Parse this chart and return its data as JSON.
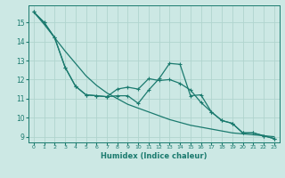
{
  "xlabel": "Humidex (Indice chaleur)",
  "bg_color": "#cce8e4",
  "grid_color": "#b0d4ce",
  "line_color": "#1a7a6e",
  "xlim": [
    -0.5,
    23.5
  ],
  "ylim": [
    8.7,
    15.9
  ],
  "xticks": [
    0,
    1,
    2,
    3,
    4,
    5,
    6,
    7,
    8,
    9,
    10,
    11,
    12,
    13,
    14,
    15,
    16,
    17,
    18,
    19,
    20,
    21,
    22,
    23
  ],
  "yticks": [
    9,
    10,
    11,
    12,
    13,
    14,
    15
  ],
  "line1_x": [
    0,
    1,
    2,
    3,
    4,
    5,
    6,
    7,
    8,
    9,
    10,
    11,
    12,
    13,
    14,
    15,
    16,
    17,
    18,
    19,
    20,
    21,
    22,
    23
  ],
  "line1_y": [
    15.55,
    14.9,
    14.2,
    13.5,
    12.85,
    12.2,
    11.7,
    11.3,
    11.0,
    10.7,
    10.5,
    10.3,
    10.1,
    9.9,
    9.75,
    9.6,
    9.5,
    9.4,
    9.3,
    9.2,
    9.15,
    9.1,
    9.05,
    9.0
  ],
  "line2_x": [
    0,
    1,
    2,
    3,
    4,
    5,
    6,
    7,
    8,
    9,
    10,
    11,
    12,
    13,
    14,
    15,
    16,
    17,
    18,
    19,
    20,
    21,
    22,
    23
  ],
  "line2_y": [
    15.55,
    15.0,
    14.2,
    12.65,
    11.65,
    11.2,
    11.15,
    11.1,
    11.15,
    11.15,
    10.75,
    11.45,
    12.05,
    12.85,
    12.8,
    11.15,
    11.2,
    10.3,
    9.85,
    9.7,
    9.2,
    9.2,
    9.05,
    8.9
  ],
  "line3_x": [
    0,
    1,
    2,
    3,
    4,
    5,
    6,
    7,
    8,
    9,
    10,
    11,
    12,
    13,
    14,
    15,
    16,
    17,
    18,
    19,
    20,
    21,
    22,
    23
  ],
  "line3_y": [
    15.55,
    15.0,
    14.2,
    12.65,
    11.65,
    11.2,
    11.15,
    11.1,
    11.5,
    11.6,
    11.5,
    12.05,
    11.95,
    12.0,
    11.8,
    11.45,
    10.8,
    10.3,
    9.85,
    9.7,
    9.2,
    9.2,
    9.05,
    8.9
  ]
}
